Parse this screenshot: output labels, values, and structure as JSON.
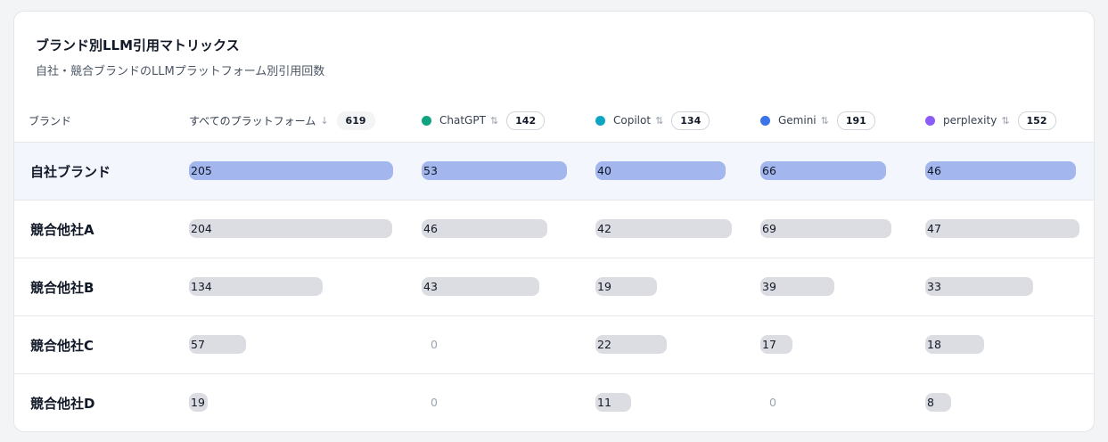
{
  "title": "ブランド別LLM引用マトリックス",
  "subtitle": "自社・競合ブランドのLLMプラットフォーム別引用回数",
  "brand_header": "ブランド",
  "columns": [
    {
      "label": "すべてのプラットフォーム",
      "sort_icon": "arrow-down-icon",
      "total": "619",
      "color": null,
      "max": 205
    },
    {
      "label": "ChatGPT",
      "sort_icon": "sort-updown-icon",
      "total": "142",
      "color": "#10a37f",
      "max": 53
    },
    {
      "label": "Copilot",
      "sort_icon": "sort-updown-icon",
      "total": "134",
      "color": "#0ea5c4",
      "max": 42
    },
    {
      "label": "Gemini",
      "sort_icon": "sort-updown-icon",
      "total": "191",
      "color": "#3b73e8",
      "max": 69
    },
    {
      "label": "perplexity",
      "sort_icon": "sort-updown-icon",
      "total": "152",
      "color": "#8b5cf6",
      "max": 47
    }
  ],
  "rows": [
    {
      "brand": "自社ブランド",
      "highlight": true,
      "values": [
        "205",
        "53",
        "40",
        "66",
        "46"
      ]
    },
    {
      "brand": "競合他社A",
      "highlight": false,
      "values": [
        "204",
        "46",
        "42",
        "69",
        "47"
      ]
    },
    {
      "brand": "競合他社B",
      "highlight": false,
      "values": [
        "134",
        "43",
        "19",
        "39",
        "33"
      ]
    },
    {
      "brand": "競合他社C",
      "highlight": false,
      "values": [
        "57",
        "0",
        "22",
        "17",
        "18"
      ]
    },
    {
      "brand": "競合他社D",
      "highlight": false,
      "values": [
        "19",
        "0",
        "11",
        "0",
        "8"
      ]
    }
  ],
  "colors": {
    "own_bar": "#a3b7ee",
    "other_bar": "#dcdde2",
    "own_row_bg": "#f3f6fd"
  }
}
